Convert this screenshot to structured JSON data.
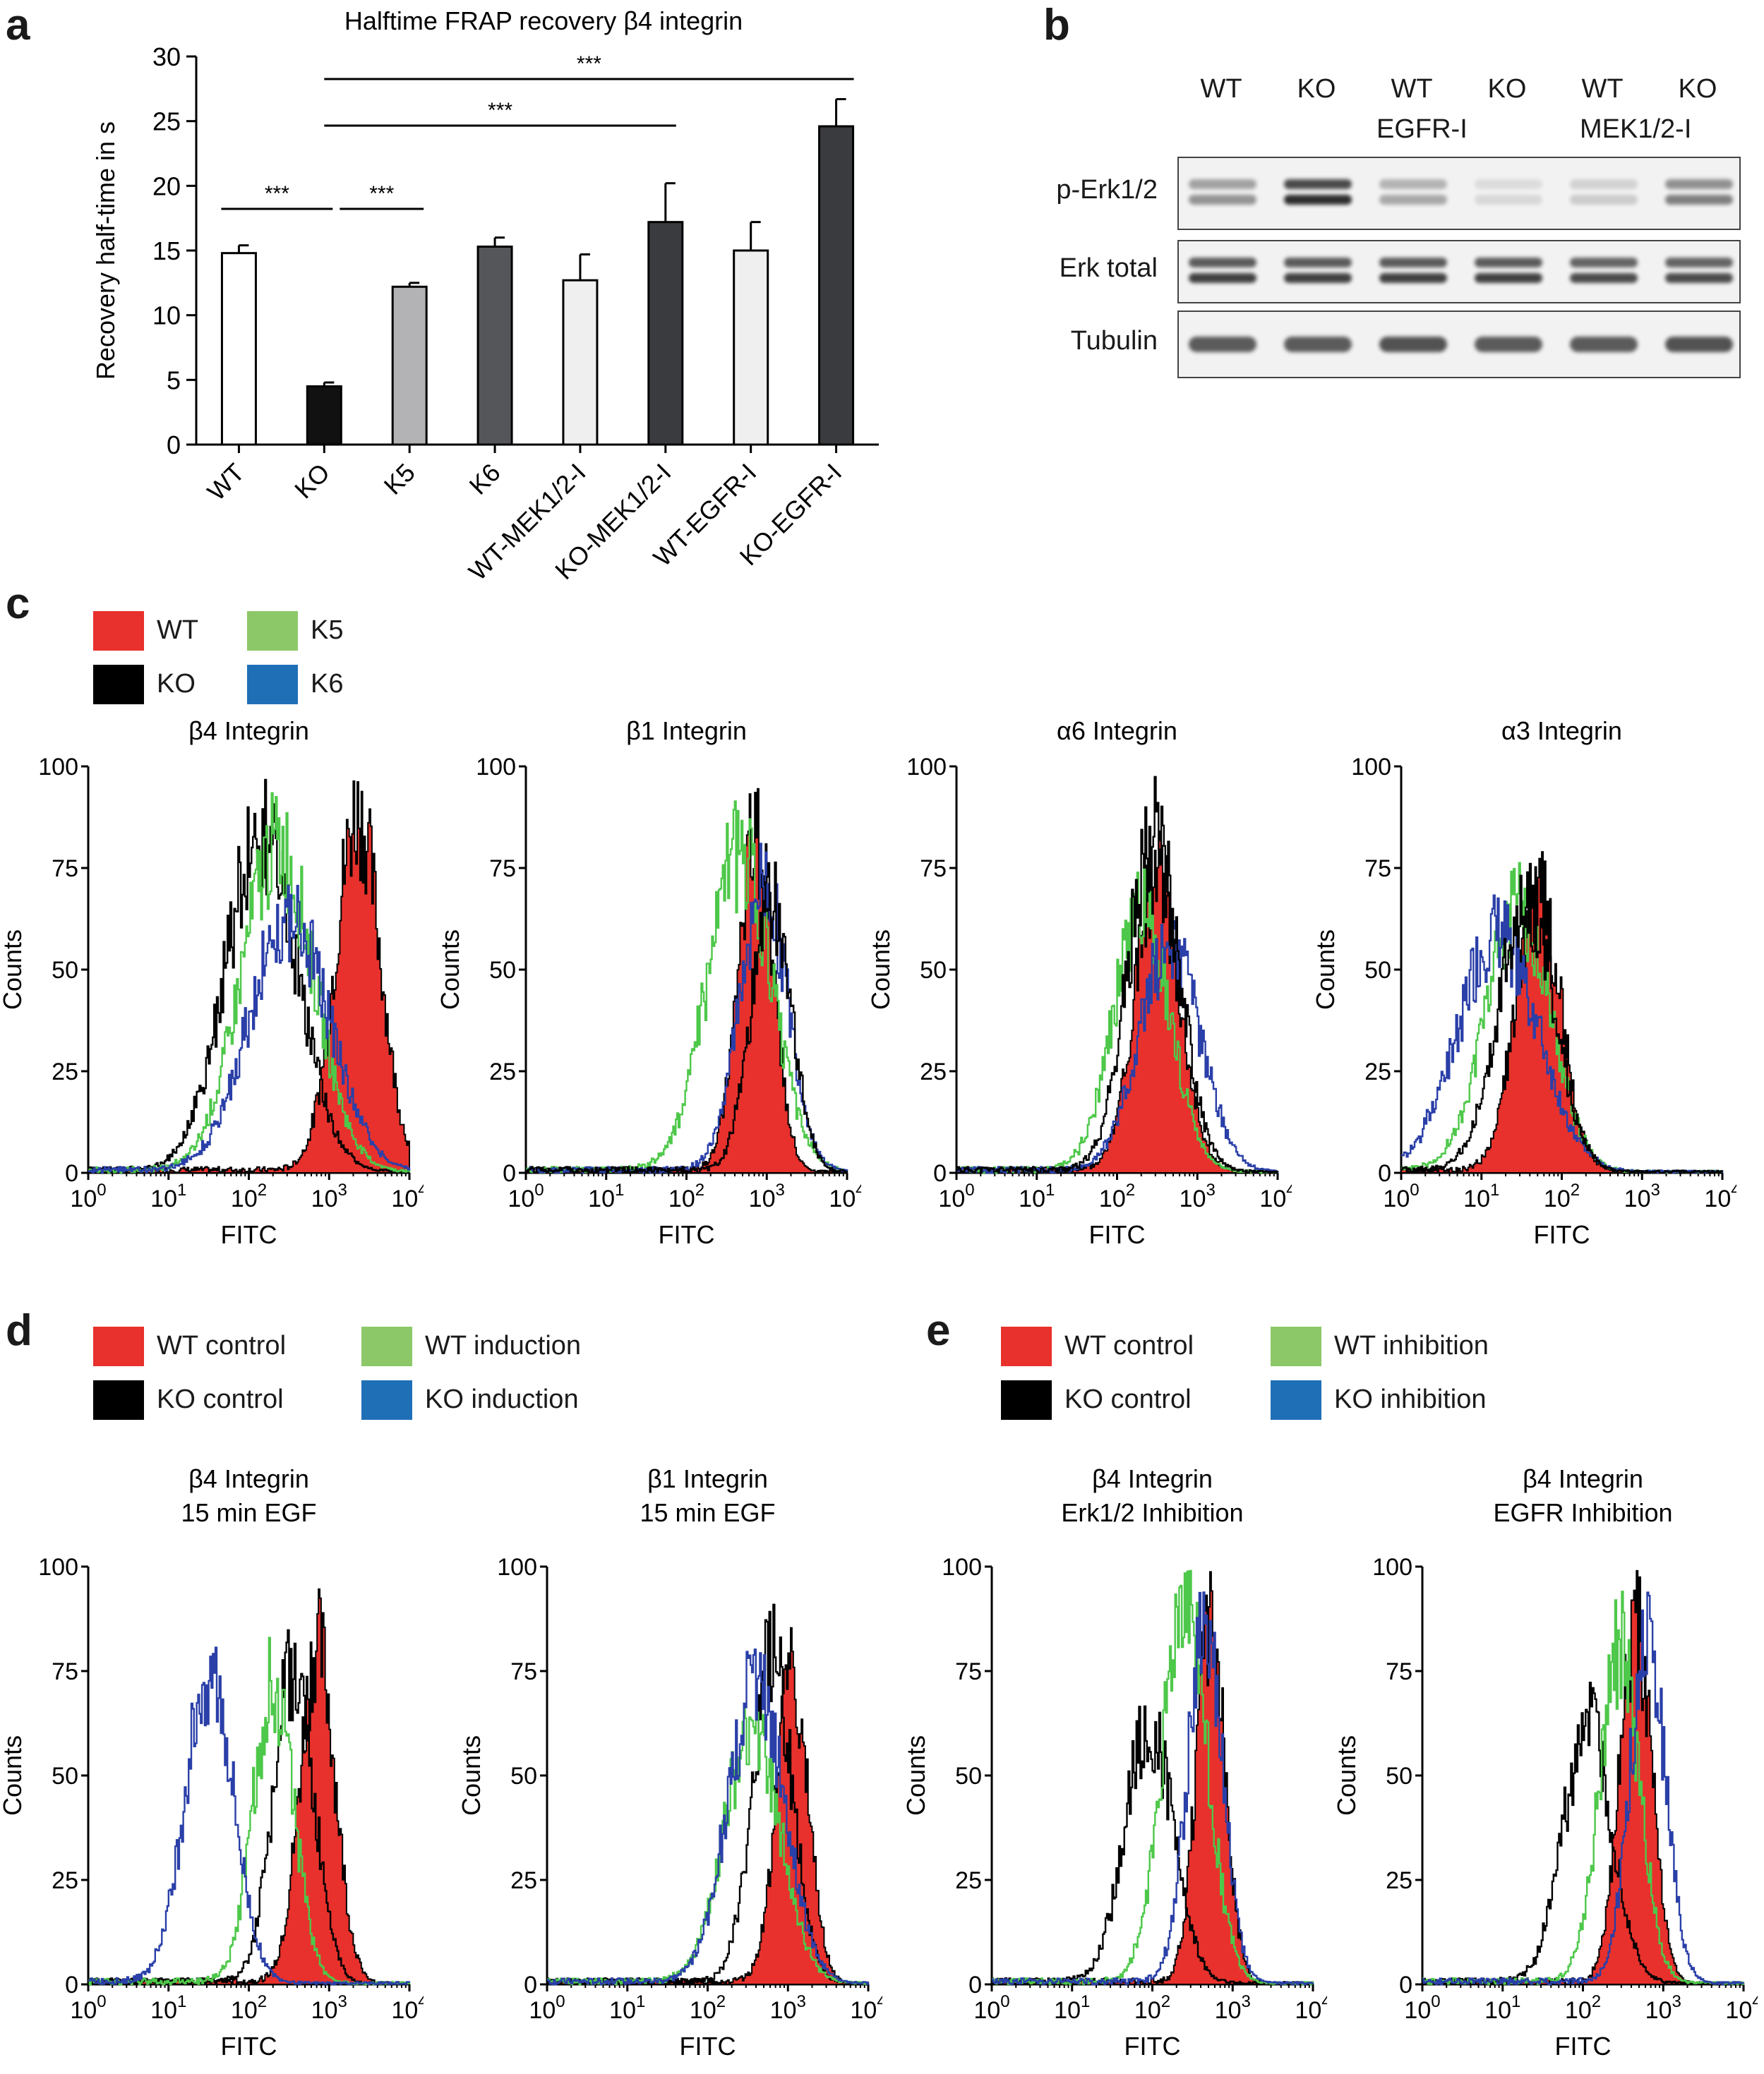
{
  "panels": {
    "a": "a",
    "b": "b",
    "c": "c",
    "d": "d",
    "e": "e"
  },
  "colors": {
    "WT": "#e8312c",
    "KO": "#000000",
    "K5": "#8cc868",
    "K6": "#1f6fb7",
    "green_line": "#4ec84a",
    "blue_line": "#2a3fa8"
  },
  "chart_data": [
    {
      "id": "a",
      "type": "bar",
      "title": "Halftime FRAP recovery β4 integrin",
      "ylabel": "Recovery half-time in s",
      "xlabel": "",
      "ylim": [
        0,
        30
      ],
      "yticks": [
        0,
        5,
        10,
        15,
        20,
        25,
        30
      ],
      "categories": [
        "WT",
        "KO",
        "K5",
        "K6",
        "WT-MEK1/2-I",
        "KO-MEK1/2-I",
        "WT-EGFR-I",
        "KO-EGFR-I"
      ],
      "values": [
        14.8,
        4.5,
        12.2,
        15.3,
        12.7,
        17.2,
        15.0,
        24.6
      ],
      "errors": [
        0.6,
        0.3,
        0.3,
        0.7,
        2.0,
        3.0,
        2.2,
        2.1
      ],
      "bar_colors": [
        "#ffffff",
        "#111111",
        "#b3b3b5",
        "#55565a",
        "#efeff0",
        "#3a3b3f",
        "#efeff0",
        "#3a3b3f"
      ],
      "significance": [
        {
          "from": "WT",
          "to": "KO",
          "label": "***"
        },
        {
          "from": "KO",
          "to": "K5",
          "label": "***"
        },
        {
          "from": "KO",
          "to": "KO-MEK1/2-I",
          "label": "***"
        },
        {
          "from": "KO",
          "to": "KO-EGFR-I",
          "label": "***"
        }
      ]
    },
    {
      "id": "c1",
      "type": "histogram",
      "title": [
        "β4 Integrin"
      ],
      "xlabel": "FITC",
      "ylabel": "Counts",
      "xlog_range": [
        0,
        4
      ],
      "ylim": [
        0,
        100
      ],
      "yticks": [
        0,
        25,
        50,
        75,
        100
      ],
      "series": [
        {
          "name": "WT",
          "style": "fill",
          "color": "#e8312c",
          "center": 3.35,
          "width": 0.28,
          "peak": 88
        },
        {
          "name": "KO",
          "style": "line",
          "color": "#000000",
          "center": 2.15,
          "width": 0.45,
          "peak": 82
        },
        {
          "name": "K5",
          "style": "line",
          "color": "#4ec84a",
          "center": 2.35,
          "width": 0.45,
          "peak": 80
        },
        {
          "name": "K6",
          "style": "line",
          "color": "#2a3fa8",
          "center": 2.5,
          "width": 0.5,
          "peak": 62
        }
      ]
    },
    {
      "id": "c2",
      "type": "histogram",
      "title": [
        "β1 Integrin"
      ],
      "xlabel": "FITC",
      "ylabel": "Counts",
      "xlog_range": [
        0,
        4
      ],
      "ylim": [
        0,
        100
      ],
      "yticks": [
        0,
        25,
        50,
        75,
        100
      ],
      "series": [
        {
          "name": "WT",
          "style": "fill",
          "color": "#e8312c",
          "center": 2.85,
          "width": 0.22,
          "peak": 82
        },
        {
          "name": "K5",
          "style": "line",
          "color": "#4ec84a",
          "center": 2.65,
          "width": 0.4,
          "peak": 78
        },
        {
          "name": "K6",
          "style": "line",
          "color": "#2a3fa8",
          "center": 2.95,
          "width": 0.3,
          "peak": 70
        },
        {
          "name": "KO",
          "style": "line",
          "color": "#000000",
          "center": 3.05,
          "width": 0.25,
          "peak": 66
        }
      ]
    },
    {
      "id": "c3",
      "type": "histogram",
      "title": [
        "α6 Integrin"
      ],
      "xlabel": "FITC",
      "ylabel": "Counts",
      "xlog_range": [
        0,
        4
      ],
      "ylim": [
        0,
        100
      ],
      "yticks": [
        0,
        25,
        50,
        75,
        100
      ],
      "series": [
        {
          "name": "WT",
          "style": "fill",
          "color": "#e8312c",
          "center": 2.5,
          "width": 0.28,
          "peak": 72
        },
        {
          "name": "K5",
          "style": "line",
          "color": "#4ec84a",
          "center": 2.3,
          "width": 0.35,
          "peak": 65
        },
        {
          "name": "K6",
          "style": "line",
          "color": "#2a3fa8",
          "center": 2.65,
          "width": 0.38,
          "peak": 55
        },
        {
          "name": "KO",
          "style": "line",
          "color": "#000000",
          "center": 2.45,
          "width": 0.32,
          "peak": 84
        }
      ]
    },
    {
      "id": "c4",
      "type": "histogram",
      "title": [
        "α3 Integrin"
      ],
      "xlabel": "FITC",
      "ylabel": "Counts",
      "xlog_range": [
        0,
        4
      ],
      "ylim": [
        0,
        100
      ],
      "yticks": [
        0,
        25,
        50,
        75,
        100
      ],
      "series": [
        {
          "name": "WT",
          "style": "fill",
          "color": "#e8312c",
          "center": 1.7,
          "width": 0.28,
          "peak": 68
        },
        {
          "name": "K5",
          "style": "line",
          "color": "#4ec84a",
          "center": 1.45,
          "width": 0.4,
          "peak": 65
        },
        {
          "name": "K6",
          "style": "line",
          "color": "#2a3fa8",
          "center": 1.2,
          "width": 0.5,
          "peak": 58
        },
        {
          "name": "KO",
          "style": "line",
          "color": "#000000",
          "center": 1.55,
          "width": 0.35,
          "peak": 66
        }
      ]
    },
    {
      "id": "d1",
      "type": "histogram",
      "title": [
        "β4 Integrin",
        "15 min EGF"
      ],
      "xlabel": "FITC",
      "ylabel": "Counts",
      "xlog_range": [
        0,
        4
      ],
      "ylim": [
        0,
        100
      ],
      "yticks": [
        0,
        25,
        50,
        75,
        100
      ],
      "series": [
        {
          "name": "WT control",
          "style": "fill",
          "color": "#e8312c",
          "center": 2.85,
          "width": 0.22,
          "peak": 80
        },
        {
          "name": "KO control",
          "style": "line",
          "color": "#000000",
          "center": 2.55,
          "width": 0.25,
          "peak": 76
        },
        {
          "name": "WT induction",
          "style": "line",
          "color": "#4ec84a",
          "center": 2.3,
          "width": 0.25,
          "peak": 72
        },
        {
          "name": "KO induction",
          "style": "line",
          "color": "#2a3fa8",
          "center": 1.5,
          "width": 0.3,
          "peak": 75
        }
      ]
    },
    {
      "id": "d2",
      "type": "histogram",
      "title": [
        "β1 Integrin",
        "15 min EGF"
      ],
      "xlabel": "FITC",
      "ylabel": "Counts",
      "xlog_range": [
        0,
        4
      ],
      "ylim": [
        0,
        100
      ],
      "yticks": [
        0,
        25,
        50,
        75,
        100
      ],
      "series": [
        {
          "name": "WT control",
          "style": "fill",
          "color": "#e8312c",
          "center": 3.05,
          "width": 0.2,
          "peak": 75
        },
        {
          "name": "KO control",
          "style": "line",
          "color": "#000000",
          "center": 2.8,
          "width": 0.25,
          "peak": 78
        },
        {
          "name": "WT induction",
          "style": "line",
          "color": "#4ec84a",
          "center": 2.55,
          "width": 0.35,
          "peak": 60
        },
        {
          "name": "KO induction",
          "style": "line",
          "color": "#2a3fa8",
          "center": 2.6,
          "width": 0.35,
          "peak": 72
        }
      ]
    },
    {
      "id": "e1",
      "type": "histogram",
      "title": [
        "β4 Integrin",
        "Erk1/2 Inhibition"
      ],
      "xlabel": "FITC",
      "ylabel": "Counts",
      "xlog_range": [
        0,
        4
      ],
      "ylim": [
        0,
        100
      ],
      "yticks": [
        0,
        25,
        50,
        75,
        100
      ],
      "series": [
        {
          "name": "WT control",
          "style": "fill",
          "color": "#e8312c",
          "center": 2.72,
          "width": 0.18,
          "peak": 84
        },
        {
          "name": "KO control",
          "style": "line",
          "color": "#000000",
          "center": 1.95,
          "width": 0.3,
          "peak": 62
        },
        {
          "name": "WT inhibition",
          "style": "line",
          "color": "#4ec84a",
          "center": 2.4,
          "width": 0.28,
          "peak": 92
        },
        {
          "name": "KO inhibition",
          "style": "line",
          "color": "#2a3fa8",
          "center": 2.65,
          "width": 0.22,
          "peak": 85
        }
      ]
    },
    {
      "id": "e2",
      "type": "histogram",
      "title": [
        "β4 Integrin",
        "EGFR Inhibition"
      ],
      "xlabel": "FITC",
      "ylabel": "Counts",
      "xlog_range": [
        0,
        4
      ],
      "ylim": [
        0,
        100
      ],
      "yticks": [
        0,
        25,
        50,
        75,
        100
      ],
      "series": [
        {
          "name": "WT control",
          "style": "fill",
          "color": "#e8312c",
          "center": 2.65,
          "width": 0.2,
          "peak": 85
        },
        {
          "name": "KO control",
          "style": "line",
          "color": "#000000",
          "center": 2.05,
          "width": 0.3,
          "peak": 62
        },
        {
          "name": "WT inhibition",
          "style": "line",
          "color": "#4ec84a",
          "center": 2.45,
          "width": 0.25,
          "peak": 80
        },
        {
          "name": "KO inhibition",
          "style": "line",
          "color": "#2a3fa8",
          "center": 2.8,
          "width": 0.22,
          "peak": 84
        }
      ]
    }
  ],
  "blot": {
    "row1_labels": [
      "WT",
      "KO",
      "WT",
      "KO",
      "WT",
      "KO"
    ],
    "group_labels": [
      "EGFR-I",
      "MEK1/2-I"
    ],
    "rows": [
      {
        "label": "p-Erk1/2",
        "intensity": [
          0.45,
          0.95,
          0.35,
          0.12,
          0.18,
          0.55
        ]
      },
      {
        "label": "Erk total",
        "intensity": [
          0.85,
          0.85,
          0.85,
          0.85,
          0.8,
          0.8
        ]
      },
      {
        "label": "Tubulin",
        "intensity": [
          0.85,
          0.85,
          0.9,
          0.85,
          0.85,
          0.9
        ]
      }
    ]
  },
  "legend_c": [
    {
      "label": "WT",
      "color": "#e8312c"
    },
    {
      "label": "K5",
      "color": "#8cc868"
    },
    {
      "label": "KO",
      "color": "#000000"
    },
    {
      "label": "K6",
      "color": "#1f6fb7"
    }
  ],
  "legend_d": [
    {
      "label": "WT control",
      "color": "#e8312c"
    },
    {
      "label": "WT induction",
      "color": "#8cc868"
    },
    {
      "label": "KO control",
      "color": "#000000"
    },
    {
      "label": "KO induction",
      "color": "#1f6fb7"
    }
  ],
  "legend_e": [
    {
      "label": "WT control",
      "color": "#e8312c"
    },
    {
      "label": "WT inhibition",
      "color": "#8cc868"
    },
    {
      "label": "KO control",
      "color": "#000000"
    },
    {
      "label": "KO inhibition",
      "color": "#1f6fb7"
    }
  ]
}
